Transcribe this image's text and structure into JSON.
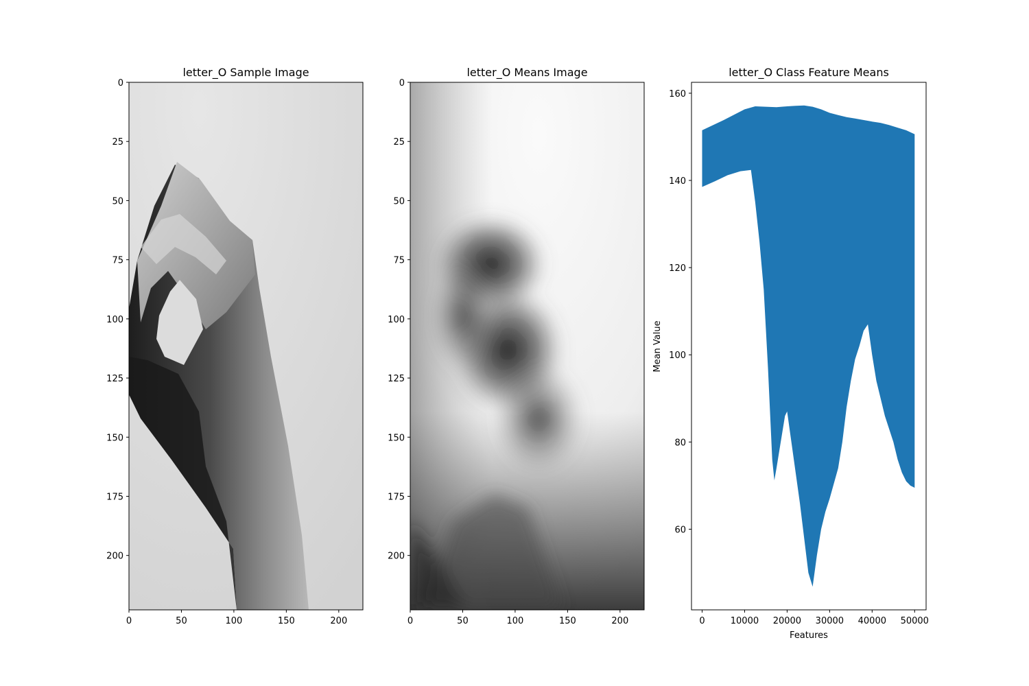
{
  "chart_data": [
    {
      "type": "image",
      "title": "letter_O Sample Image",
      "xticks": [
        "0",
        "50",
        "100",
        "150",
        "200"
      ],
      "yticks": [
        "0",
        "25",
        "50",
        "75",
        "100",
        "125",
        "150",
        "175",
        "200"
      ],
      "xlim": [
        0,
        223
      ],
      "ylim": [
        223,
        0
      ],
      "content": "grayscale photo of a hand forming the letter O"
    },
    {
      "type": "image",
      "title": "letter_O Means Image",
      "xticks": [
        "0",
        "50",
        "100",
        "150",
        "200"
      ],
      "yticks": [
        "0",
        "25",
        "50",
        "75",
        "100",
        "125",
        "150",
        "175",
        "200"
      ],
      "xlim": [
        0,
        223
      ],
      "ylim": [
        223,
        0
      ],
      "content": "blurred grayscale mean of class images"
    },
    {
      "type": "area",
      "title": "letter_O Class Feature Means",
      "xlabel": "Features",
      "ylabel": "Mean Value",
      "xticks": [
        "0",
        "10000",
        "20000",
        "30000",
        "40000",
        "50000"
      ],
      "yticks": [
        "60",
        "80",
        "100",
        "120",
        "140",
        "160"
      ],
      "xlim": [
        -2500,
        52700
      ],
      "ylim": [
        41.5,
        162.5
      ],
      "color": "#1f77b4",
      "upper": [
        [
          0,
          151.5
        ],
        [
          5000,
          153.8
        ],
        [
          10000,
          156.3
        ],
        [
          12500,
          157.0
        ],
        [
          15000,
          156.9
        ],
        [
          17500,
          156.8
        ],
        [
          20000,
          157.0
        ],
        [
          22000,
          157.1
        ],
        [
          24000,
          157.2
        ],
        [
          26000,
          156.9
        ],
        [
          28000,
          156.3
        ],
        [
          30000,
          155.5
        ],
        [
          32000,
          155.0
        ],
        [
          34000,
          154.5
        ],
        [
          36000,
          154.2
        ],
        [
          40000,
          153.5
        ],
        [
          42000,
          153.2
        ],
        [
          44000,
          152.7
        ],
        [
          46000,
          152.1
        ],
        [
          48000,
          151.5
        ],
        [
          50000,
          150.6
        ]
      ],
      "lower": [
        [
          0,
          138.5
        ],
        [
          3000,
          139.8
        ],
        [
          6000,
          141.2
        ],
        [
          9000,
          142.1
        ],
        [
          11500,
          142.4
        ],
        [
          12500,
          135
        ],
        [
          13500,
          126
        ],
        [
          14500,
          115
        ],
        [
          15500,
          97
        ],
        [
          16500,
          76
        ],
        [
          17000,
          71.2
        ],
        [
          17500,
          74
        ],
        [
          18500,
          80
        ],
        [
          19500,
          86
        ],
        [
          20000,
          87
        ],
        [
          21000,
          80
        ],
        [
          22000,
          73
        ],
        [
          23000,
          66
        ],
        [
          24000,
          58
        ],
        [
          25000,
          50
        ],
        [
          26000,
          46.8
        ],
        [
          27000,
          54
        ],
        [
          28000,
          60
        ],
        [
          29000,
          64
        ],
        [
          30000,
          67
        ],
        [
          32000,
          74
        ],
        [
          33000,
          80
        ],
        [
          34000,
          88
        ],
        [
          35000,
          94
        ],
        [
          36000,
          99
        ],
        [
          37000,
          102
        ],
        [
          38000,
          105.5
        ],
        [
          39000,
          107
        ],
        [
          40000,
          100
        ],
        [
          41000,
          94
        ],
        [
          42000,
          90
        ],
        [
          43000,
          86
        ],
        [
          44000,
          83
        ],
        [
          45000,
          80
        ],
        [
          46000,
          76
        ],
        [
          47000,
          73
        ],
        [
          48000,
          71
        ],
        [
          49000,
          70
        ],
        [
          50000,
          69.5
        ]
      ]
    }
  ]
}
